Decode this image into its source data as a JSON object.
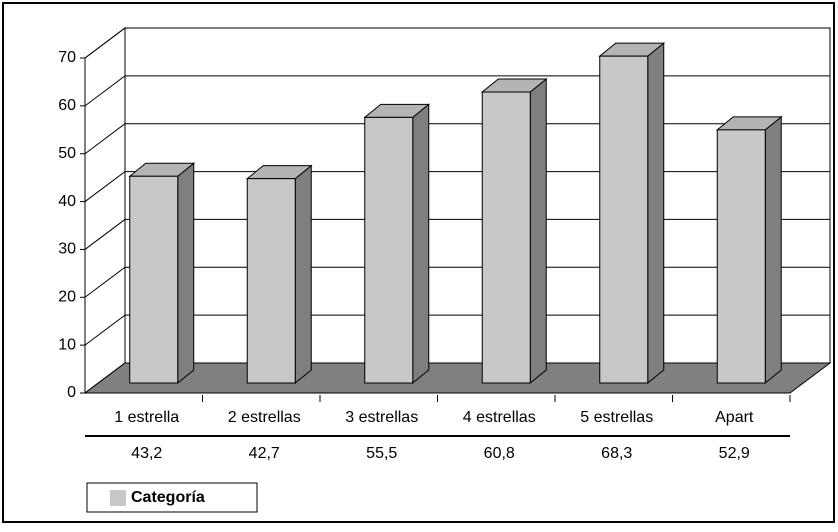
{
  "chart_data": {
    "type": "bar3d",
    "categories": [
      "1 estrella",
      "2 estrellas",
      "3 estrellas",
      "4 estrellas",
      "5 estrellas",
      "Apart"
    ],
    "series": [
      {
        "name": "Categoría",
        "color": "#c8c8c8",
        "values": [
          43.2,
          42.7,
          55.5,
          60.8,
          68.3,
          52.9
        ],
        "value_labels": [
          "43,2",
          "42,7",
          "55,5",
          "60,8",
          "68,3",
          "52,9"
        ]
      }
    ],
    "ylim": [
      0,
      70
    ],
    "yticks": [
      0,
      10,
      20,
      30,
      40,
      50,
      60,
      70
    ],
    "grid": true,
    "legend": "bottom-left"
  }
}
